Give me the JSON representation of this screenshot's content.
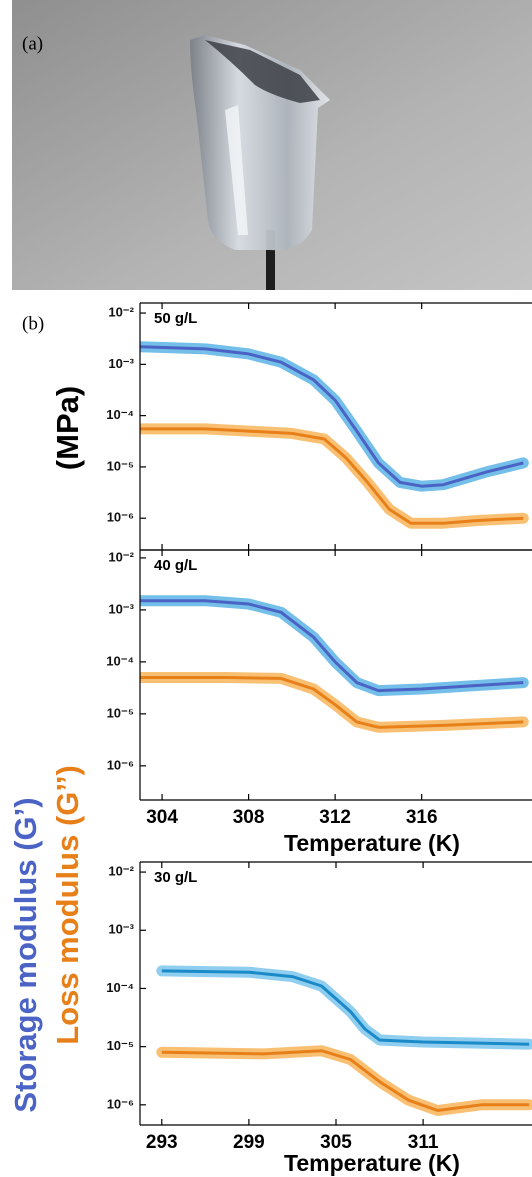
{
  "panel_labels": [
    "(a)",
    "(b)"
  ],
  "chart_data": [
    {
      "type": "line",
      "title": "50 g/L",
      "ylabel": "(MPa)",
      "log_y": true,
      "xtick_labels": false,
      "xlim": [
        302.98,
        321.1
      ],
      "ylim": [
        2.4e-07,
        0.0157
      ],
      "xticks": [
        304,
        308,
        312,
        316
      ],
      "yticks": [
        {
          "value": 0.01,
          "label": "10⁻²"
        },
        {
          "value": 0.001,
          "label": "10⁻³"
        },
        {
          "value": 0.0001,
          "label": "10⁻⁴"
        },
        {
          "value": 1e-05,
          "label": "10⁻⁵"
        },
        {
          "value": 1e-06,
          "label": "10⁻⁶"
        }
      ],
      "series": [
        {
          "name": "Storage modulus (G’)",
          "color": "#4a63c4",
          "band_color": "#5ab4e5",
          "x": [
            303,
            306,
            308,
            309.5,
            311,
            312,
            313,
            314,
            315,
            316,
            317,
            318,
            319,
            320.7
          ],
          "values": [
            0.0022,
            0.002,
            0.0016,
            0.0011,
            0.0005,
            0.0002,
            5e-05,
            1.2e-05,
            5e-06,
            4.2e-06,
            4.5e-06,
            6e-06,
            8e-06,
            1.2e-05
          ]
        },
        {
          "name": "Loss modulus (G’’)",
          "color": "#e8801a",
          "band_color": "#f8b55a",
          "x": [
            303,
            306,
            308,
            310,
            311.5,
            312.5,
            313.5,
            314.5,
            315.5,
            317,
            318.5,
            320.7
          ],
          "values": [
            5.5e-05,
            5.5e-05,
            5e-05,
            4.5e-05,
            3.5e-05,
            1.5e-05,
            5e-06,
            1.5e-06,
            8e-07,
            8e-07,
            9e-07,
            1e-06
          ]
        }
      ]
    },
    {
      "type": "line",
      "title": "40 g/L",
      "xlabel": "Temperature (K)",
      "log_y": true,
      "xlim": [
        302.98,
        321.1
      ],
      "ylim": [
        2.2e-07,
        0.0142
      ],
      "xticks": [
        304,
        308,
        312,
        316
      ],
      "yticks": [
        {
          "value": 0.01,
          "label": "10⁻²"
        },
        {
          "value": 0.001,
          "label": "10⁻³"
        },
        {
          "value": 0.0001,
          "label": "10⁻⁴"
        },
        {
          "value": 1e-05,
          "label": "10⁻⁵"
        },
        {
          "value": 1e-06,
          "label": "10⁻⁶"
        }
      ],
      "series": [
        {
          "color": "#4a63c4",
          "band_color": "#5ab4e5",
          "x": [
            303,
            306,
            308,
            309.5,
            311,
            312,
            313,
            314,
            316,
            318,
            320.7
          ],
          "values": [
            0.0015,
            0.0015,
            0.0013,
            0.0009,
            0.0003,
            0.0001,
            4e-05,
            2.8e-05,
            3e-05,
            3.4e-05,
            4e-05
          ]
        },
        {
          "color": "#e8801a",
          "band_color": "#f8b55a",
          "x": [
            303,
            307,
            309.5,
            311,
            312,
            313,
            314,
            317,
            320.7
          ],
          "values": [
            5e-05,
            5e-05,
            4.8e-05,
            3e-05,
            1.5e-05,
            7e-06,
            5.5e-06,
            6e-06,
            7e-06
          ]
        }
      ]
    },
    {
      "type": "line",
      "title": "30 g/L",
      "xlabel": "Temperature (K)",
      "log_y": true,
      "xlim": [
        291.5,
        318.5
      ],
      "ylim": [
        4.5e-07,
        0.0149
      ],
      "xticks": [
        293,
        299,
        305,
        311
      ],
      "yticks": [
        {
          "value": 0.01,
          "label": "10⁻²"
        },
        {
          "value": 0.001,
          "label": "10⁻³"
        },
        {
          "value": 0.0001,
          "label": "10⁻⁴"
        },
        {
          "value": 1e-05,
          "label": "10⁻⁵"
        },
        {
          "value": 1e-06,
          "label": "10⁻⁶"
        }
      ],
      "series": [
        {
          "color": "#1a8ac8",
          "band_color": "#7cc6ec",
          "x": [
            293,
            299,
            302,
            304,
            306,
            307,
            308,
            311,
            318.3
          ],
          "values": [
            0.0002,
            0.00019,
            0.00016,
            0.00011,
            4e-05,
            2e-05,
            1.3e-05,
            1.2e-05,
            1.1e-05
          ]
        },
        {
          "color": "#e8801a",
          "band_color": "#f8b55a",
          "x": [
            293,
            300,
            304,
            306,
            308,
            310,
            312,
            315,
            318.3
          ],
          "values": [
            8e-06,
            7.5e-06,
            8.5e-06,
            6e-06,
            2.5e-06,
            1.2e-06,
            8e-07,
            1e-06,
            1e-06
          ]
        }
      ]
    }
  ]
}
